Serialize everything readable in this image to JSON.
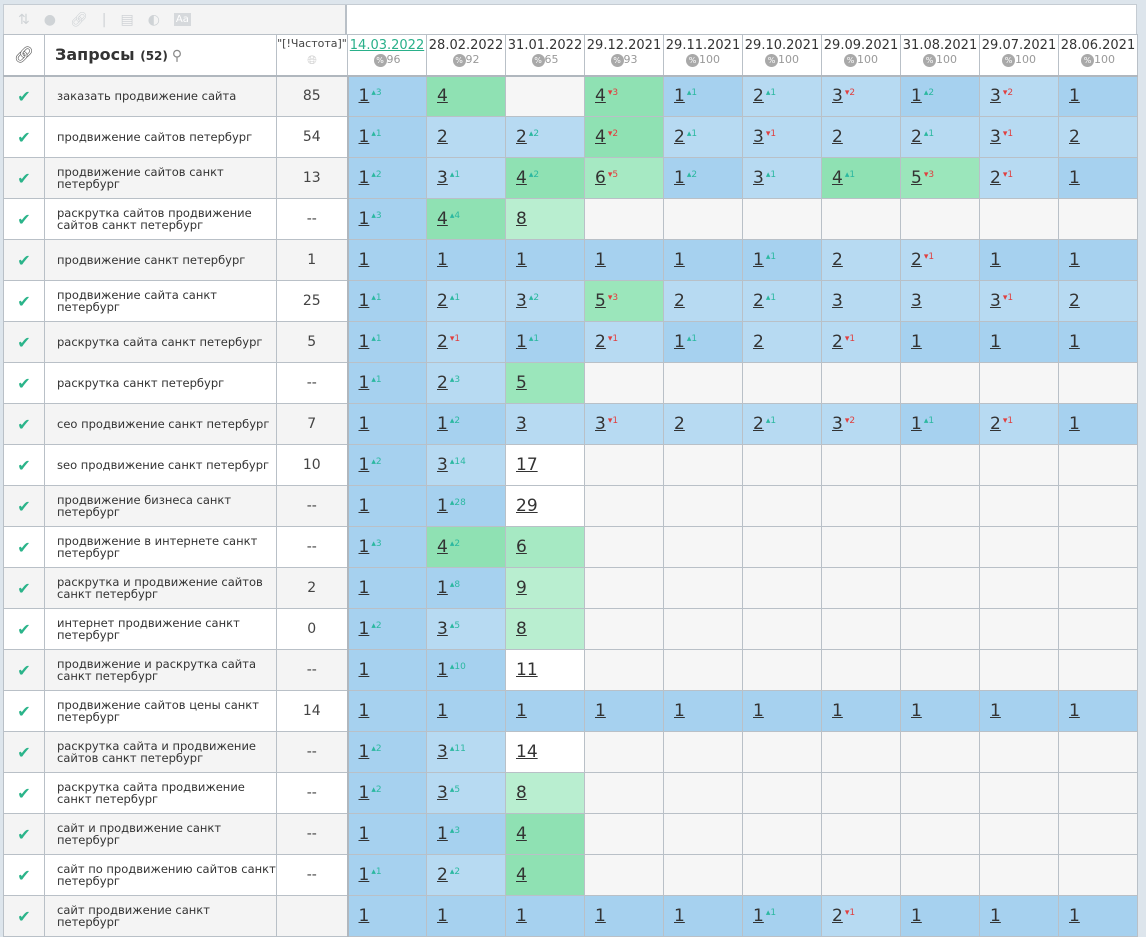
{
  "toolbar": {
    "icons": [
      "sort-icon",
      "toggle-icon",
      "link-icon",
      "separator",
      "calendar-icon",
      "contrast-icon",
      "font-icon"
    ]
  },
  "header": {
    "query_title": "Запросы",
    "query_count": "(52)",
    "freq_label": "\"[!Частота]\"",
    "dates": [
      {
        "date": "14.03.2022",
        "pct": "96",
        "active": true
      },
      {
        "date": "28.02.2022",
        "pct": "92"
      },
      {
        "date": "31.01.2022",
        "pct": "65"
      },
      {
        "date": "29.12.2021",
        "pct": "93"
      },
      {
        "date": "29.11.2021",
        "pct": "100"
      },
      {
        "date": "29.10.2021",
        "pct": "100"
      },
      {
        "date": "29.09.2021",
        "pct": "100"
      },
      {
        "date": "31.08.2021",
        "pct": "100"
      },
      {
        "date": "29.07.2021",
        "pct": "100"
      },
      {
        "date": "28.06.2021",
        "pct": "100"
      }
    ]
  },
  "colors": {
    "pos1": "#a6d1ef",
    "pos2_3": "#b7daf2",
    "pos4": "#8fe1b3",
    "pos5": "#9be6bb",
    "pos6": "#a6e9c3",
    "pos7_10": "#b9eed0",
    "pos11": "#ffffff",
    "empty": "#f6f6f6",
    "delta_up": "#2bb8a0",
    "delta_down": "#e04040",
    "check": "#2bb48a"
  },
  "rows": [
    {
      "query": "заказать продвижение сайта",
      "freq": "85",
      "pos": [
        [
          1,
          3
        ],
        [
          4,
          0
        ],
        null,
        [
          4,
          -3
        ],
        [
          1,
          1
        ],
        [
          2,
          1
        ],
        [
          3,
          -2
        ],
        [
          1,
          2
        ],
        [
          3,
          -2
        ],
        [
          1,
          0
        ]
      ]
    },
    {
      "query": "продвижение сайтов петербург",
      "freq": "54",
      "pos": [
        [
          1,
          1
        ],
        [
          2,
          0
        ],
        [
          2,
          2
        ],
        [
          4,
          -2
        ],
        [
          2,
          1
        ],
        [
          3,
          -1
        ],
        [
          2,
          0
        ],
        [
          2,
          1
        ],
        [
          3,
          -1
        ],
        [
          2,
          0
        ]
      ]
    },
    {
      "query": "продвижение сайтов санкт петербург",
      "freq": "13",
      "pos": [
        [
          1,
          2
        ],
        [
          3,
          1
        ],
        [
          4,
          2
        ],
        [
          6,
          -5
        ],
        [
          1,
          2
        ],
        [
          3,
          1
        ],
        [
          4,
          1
        ],
        [
          5,
          -3
        ],
        [
          2,
          -1
        ],
        [
          1,
          0
        ]
      ]
    },
    {
      "query": "раскрутка сайтов продвижение сайтов санкт петербург",
      "freq": "--",
      "pos": [
        [
          1,
          3
        ],
        [
          4,
          4
        ],
        [
          8,
          0
        ],
        null,
        null,
        null,
        null,
        null,
        null,
        null
      ]
    },
    {
      "query": "продвижение санкт петербург",
      "freq": "1",
      "pos": [
        [
          1,
          0
        ],
        [
          1,
          0
        ],
        [
          1,
          0
        ],
        [
          1,
          0
        ],
        [
          1,
          0
        ],
        [
          1,
          1
        ],
        [
          2,
          0
        ],
        [
          2,
          -1
        ],
        [
          1,
          0
        ],
        [
          1,
          0
        ]
      ]
    },
    {
      "query": "продвижение сайта санкт петербург",
      "freq": "25",
      "pos": [
        [
          1,
          1
        ],
        [
          2,
          1
        ],
        [
          3,
          2
        ],
        [
          5,
          -3
        ],
        [
          2,
          0
        ],
        [
          2,
          1
        ],
        [
          3,
          0
        ],
        [
          3,
          0
        ],
        [
          3,
          -1
        ],
        [
          2,
          0
        ]
      ]
    },
    {
      "query": "раскрутка сайта санкт петербург",
      "freq": "5",
      "pos": [
        [
          1,
          1
        ],
        [
          2,
          -1
        ],
        [
          1,
          1
        ],
        [
          2,
          -1
        ],
        [
          1,
          1
        ],
        [
          2,
          0
        ],
        [
          2,
          -1
        ],
        [
          1,
          0
        ],
        [
          1,
          0
        ],
        [
          1,
          0
        ]
      ]
    },
    {
      "query": "раскрутка санкт петербург",
      "freq": "--",
      "pos": [
        [
          1,
          1
        ],
        [
          2,
          3
        ],
        [
          5,
          0
        ],
        null,
        null,
        null,
        null,
        null,
        null,
        null
      ]
    },
    {
      "query": "сео продвижение санкт петербург",
      "freq": "7",
      "pos": [
        [
          1,
          0
        ],
        [
          1,
          2
        ],
        [
          3,
          0
        ],
        [
          3,
          -1
        ],
        [
          2,
          0
        ],
        [
          2,
          1
        ],
        [
          3,
          -2
        ],
        [
          1,
          1
        ],
        [
          2,
          -1
        ],
        [
          1,
          0
        ]
      ]
    },
    {
      "query": "seo продвижение санкт петербург",
      "freq": "10",
      "pos": [
        [
          1,
          2
        ],
        [
          3,
          14
        ],
        [
          17,
          0
        ],
        null,
        null,
        null,
        null,
        null,
        null,
        null
      ]
    },
    {
      "query": "продвижение бизнеса санкт петербург",
      "freq": "--",
      "pos": [
        [
          1,
          0
        ],
        [
          1,
          28
        ],
        [
          29,
          0
        ],
        null,
        null,
        null,
        null,
        null,
        null,
        null
      ]
    },
    {
      "query": "продвижение в интернете санкт петербург",
      "freq": "--",
      "pos": [
        [
          1,
          3
        ],
        [
          4,
          2
        ],
        [
          6,
          0
        ],
        null,
        null,
        null,
        null,
        null,
        null,
        null
      ]
    },
    {
      "query": "раскрутка и продвижение сайтов санкт петербург",
      "freq": "2",
      "pos": [
        [
          1,
          0
        ],
        [
          1,
          8
        ],
        [
          9,
          0
        ],
        null,
        null,
        null,
        null,
        null,
        null,
        null
      ]
    },
    {
      "query": "интернет продвижение санкт петербург",
      "freq": "0",
      "pos": [
        [
          1,
          2
        ],
        [
          3,
          5
        ],
        [
          8,
          0
        ],
        null,
        null,
        null,
        null,
        null,
        null,
        null
      ]
    },
    {
      "query": "продвижение и раскрутка сайта санкт петербург",
      "freq": "--",
      "pos": [
        [
          1,
          0
        ],
        [
          1,
          10
        ],
        [
          11,
          0
        ],
        null,
        null,
        null,
        null,
        null,
        null,
        null
      ]
    },
    {
      "query": "продвижение сайтов цены санкт петербург",
      "freq": "14",
      "pos": [
        [
          1,
          0
        ],
        [
          1,
          0
        ],
        [
          1,
          0
        ],
        [
          1,
          0
        ],
        [
          1,
          0
        ],
        [
          1,
          0
        ],
        [
          1,
          0
        ],
        [
          1,
          0
        ],
        [
          1,
          0
        ],
        [
          1,
          0
        ]
      ]
    },
    {
      "query": "раскрутка сайта и продвижение сайтов санкт петербург",
      "freq": "--",
      "pos": [
        [
          1,
          2
        ],
        [
          3,
          11
        ],
        [
          14,
          0
        ],
        null,
        null,
        null,
        null,
        null,
        null,
        null
      ]
    },
    {
      "query": "раскрутка сайта продвижение санкт петербург",
      "freq": "--",
      "pos": [
        [
          1,
          2
        ],
        [
          3,
          5
        ],
        [
          8,
          0
        ],
        null,
        null,
        null,
        null,
        null,
        null,
        null
      ]
    },
    {
      "query": "сайт и продвижение санкт петербург",
      "freq": "--",
      "pos": [
        [
          1,
          0
        ],
        [
          1,
          3
        ],
        [
          4,
          0
        ],
        null,
        null,
        null,
        null,
        null,
        null,
        null
      ]
    },
    {
      "query": "сайт по продвижению сайтов санкт петербург",
      "freq": "--",
      "pos": [
        [
          1,
          1
        ],
        [
          2,
          2
        ],
        [
          4,
          0
        ],
        null,
        null,
        null,
        null,
        null,
        null,
        null
      ]
    },
    {
      "query": "сайт продвижение санкт петербург",
      "freq": "",
      "pos": [
        [
          1,
          0
        ],
        [
          1,
          0
        ],
        [
          1,
          0
        ],
        [
          1,
          0
        ],
        [
          1,
          0
        ],
        [
          1,
          1
        ],
        [
          2,
          -1
        ],
        [
          1,
          0
        ],
        [
          1,
          0
        ],
        [
          1,
          0
        ]
      ]
    }
  ]
}
